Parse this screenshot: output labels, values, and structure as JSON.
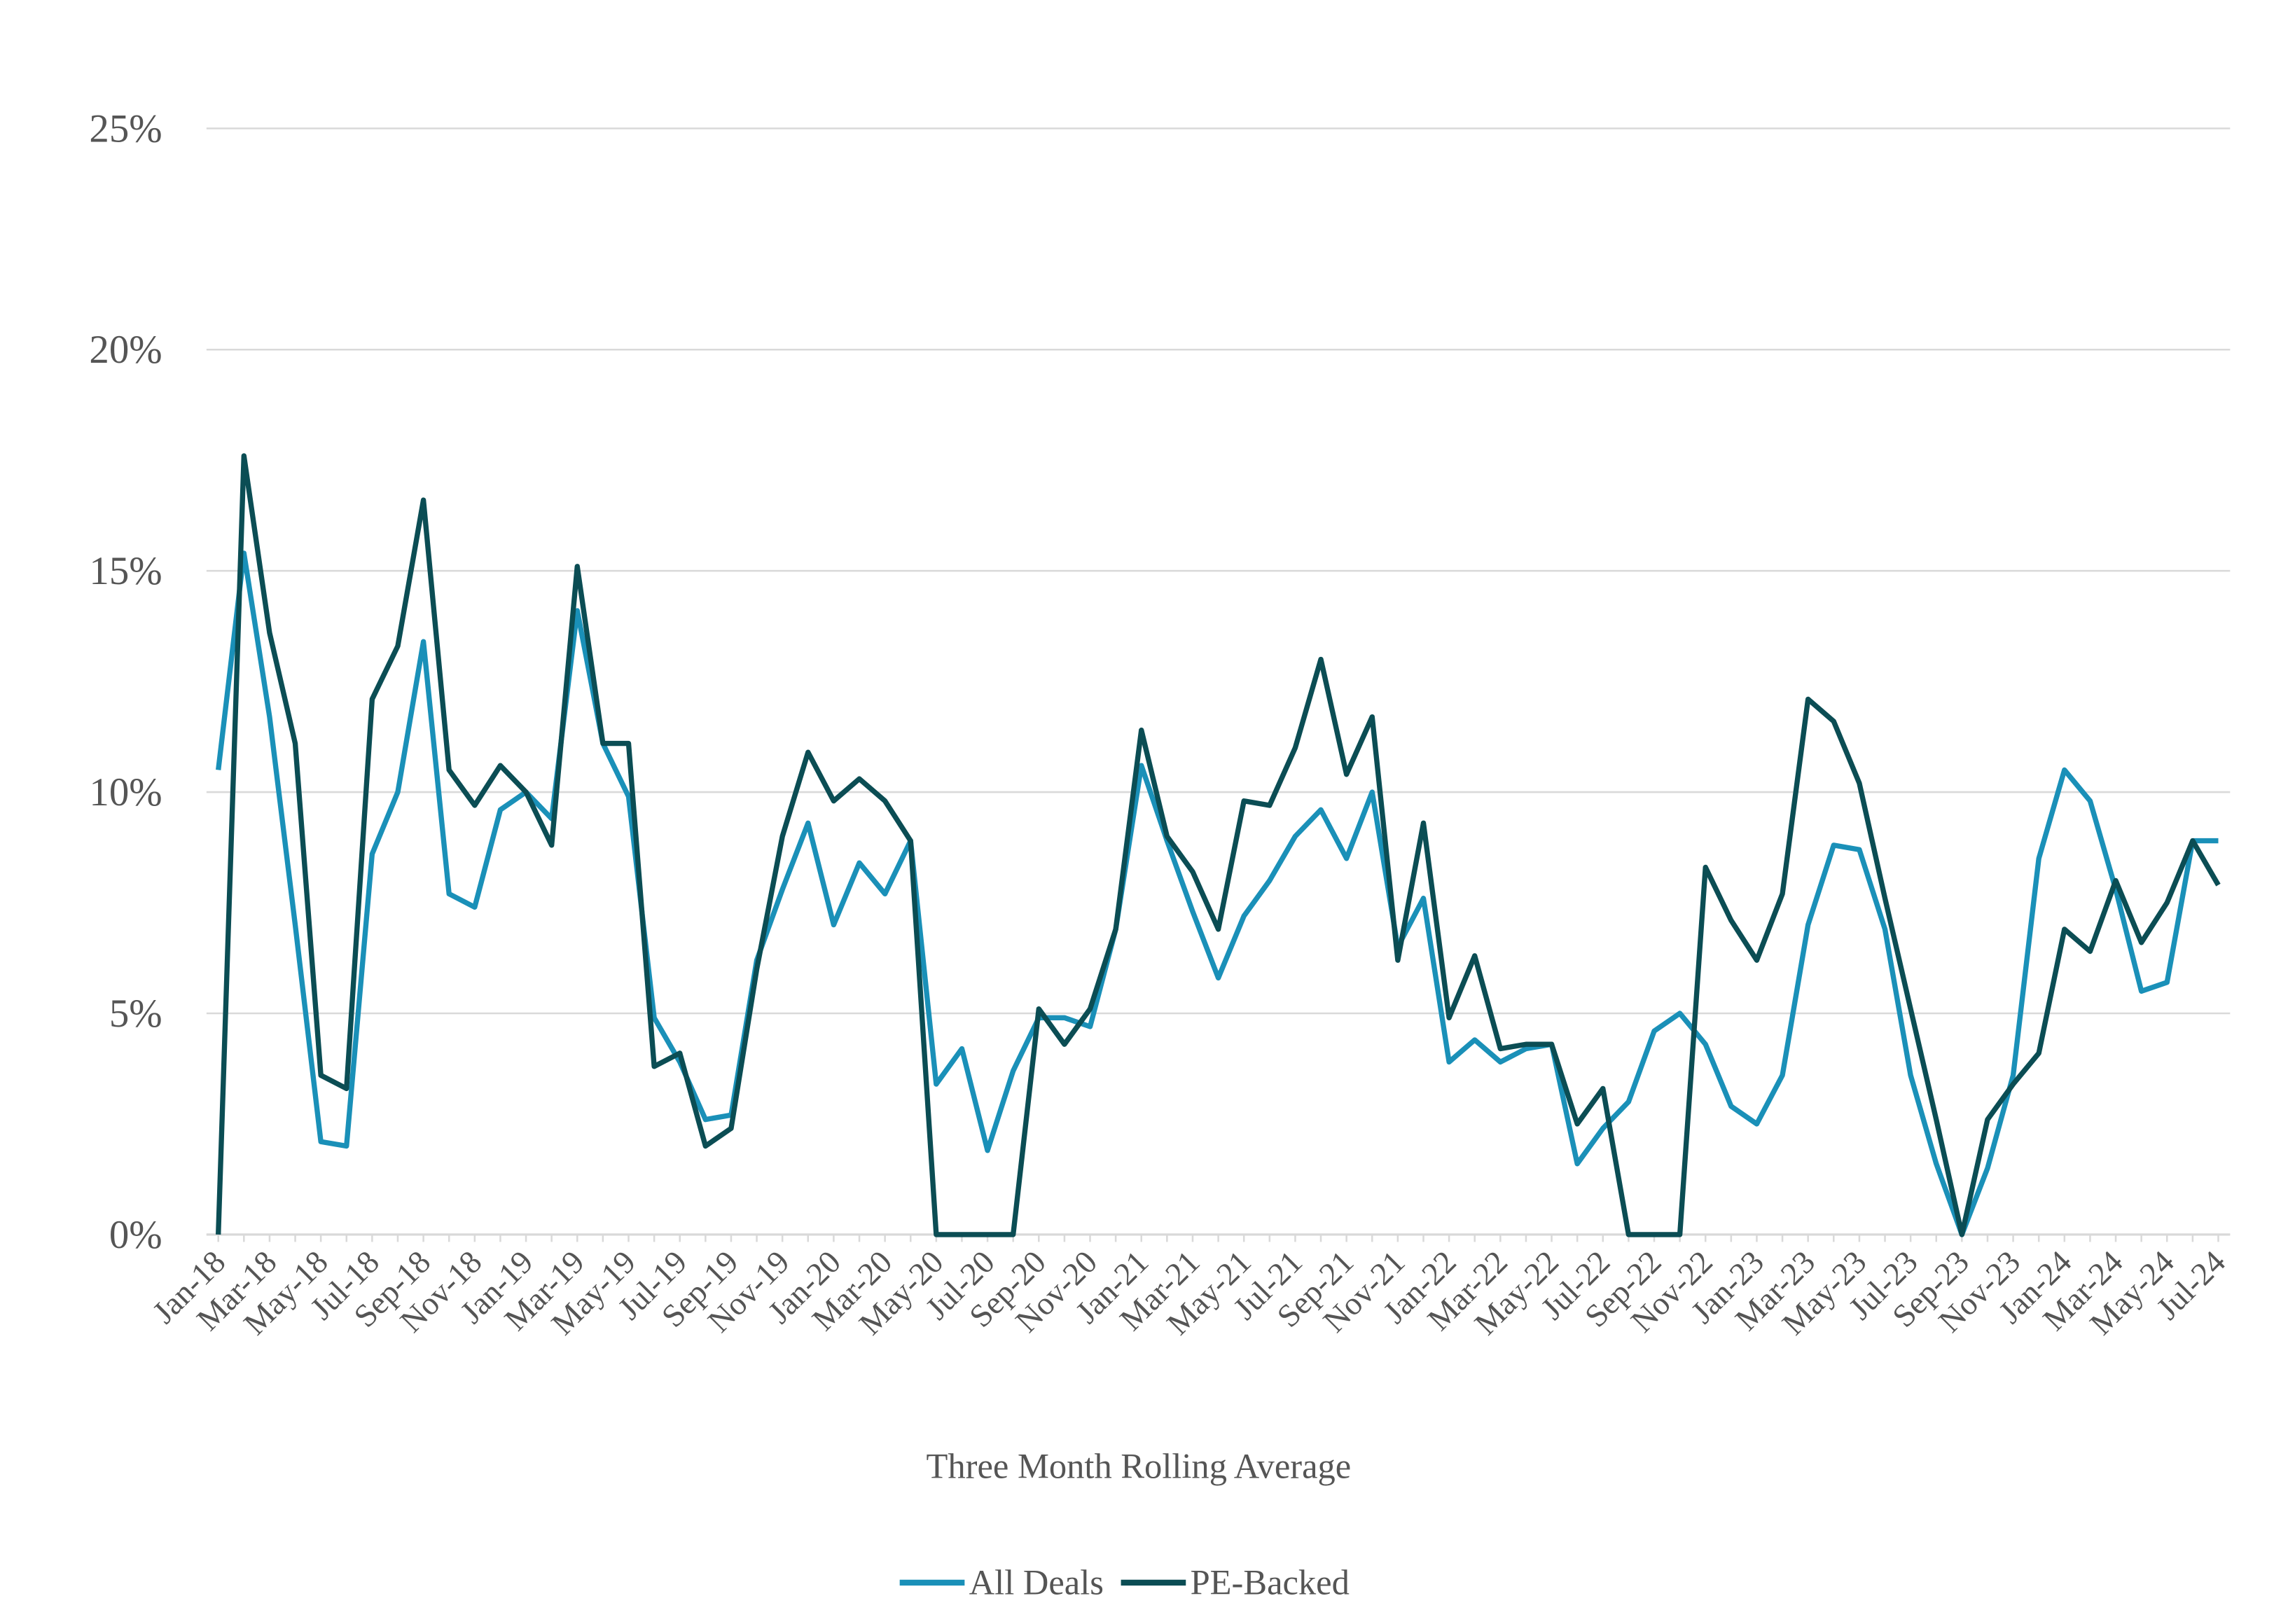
{
  "chart_data": {
    "type": "line",
    "x_label": "Three Month Rolling Average",
    "categories": [
      "Jan-18",
      null,
      "Mar-18",
      null,
      "May-18",
      null,
      "Jul-18",
      null,
      "Sep-18",
      null,
      "Nov-18",
      null,
      "Jan-19",
      null,
      "Mar-19",
      null,
      "May-19",
      null,
      "Jul-19",
      null,
      "Sep-19",
      null,
      "Nov-19",
      null,
      "Jan-20",
      null,
      "Mar-20",
      null,
      "May-20",
      null,
      "Jul-20",
      null,
      "Sep-20",
      null,
      "Nov-20",
      null,
      "Jan-21",
      null,
      "Mar-21",
      null,
      "May-21",
      null,
      "Jul-21",
      null,
      "Sep-21",
      null,
      "Nov-21",
      null,
      "Jan-22",
      null,
      "Mar-22",
      null,
      "May-22",
      null,
      "Jul-22",
      null,
      "Sep-22",
      null,
      "Nov-22",
      null,
      "Jan-23",
      null,
      "Mar-23",
      null,
      "May-23",
      null,
      "Jul-23",
      null,
      "Sep-23",
      null,
      "Nov-23",
      null,
      "Jan-24",
      null,
      "Mar-24",
      null,
      "May-24",
      null,
      "Jul-24"
    ],
    "series": [
      {
        "name": "All Deals",
        "color": "#1a90b8",
        "values": [
          10.5,
          15.4,
          11.7,
          7.0,
          2.1,
          2.0,
          8.6,
          10.0,
          13.4,
          7.7,
          7.4,
          9.6,
          10.0,
          9.4,
          14.1,
          11.1,
          9.9,
          4.9,
          3.9,
          2.6,
          2.7,
          6.2,
          7.8,
          9.3,
          7.0,
          8.4,
          7.7,
          8.9,
          3.4,
          4.2,
          1.9,
          3.7,
          4.9,
          4.9,
          4.7,
          6.9,
          10.6,
          8.9,
          7.3,
          5.8,
          7.2,
          8.0,
          9.0,
          9.6,
          8.5,
          10.0,
          6.5,
          7.6,
          3.9,
          4.4,
          3.9,
          4.2,
          4.3,
          1.6,
          2.4,
          3.0,
          4.6,
          5.0,
          4.3,
          2.9,
          2.5,
          3.6,
          7.0,
          8.8,
          8.7,
          6.9,
          3.6,
          1.6,
          0,
          1.5,
          3.6,
          8.5,
          10.5,
          9.8,
          7.8,
          5.5,
          5.7,
          8.9,
          8.9
        ]
      },
      {
        "name": "PE-Backed",
        "color": "#0b4d54",
        "values": [
          0,
          17.6,
          13.6,
          11.1,
          3.6,
          3.3,
          12.1,
          13.3,
          16.6,
          10.5,
          9.7,
          10.6,
          10.0,
          8.8,
          15.1,
          11.1,
          11.1,
          3.8,
          4.1,
          2.0,
          2.4,
          6.0,
          9.0,
          10.9,
          9.8,
          10.3,
          9.8,
          8.9,
          0,
          0,
          0,
          0,
          5.1,
          4.3,
          5.1,
          6.9,
          11.4,
          9.0,
          8.2,
          6.9,
          9.8,
          9.7,
          11.0,
          13.0,
          10.4,
          11.7,
          6.2,
          9.3,
          4.9,
          6.3,
          4.2,
          4.3,
          4.3,
          2.5,
          3.3,
          0,
          0,
          0,
          8.3,
          7.1,
          6.2,
          7.7,
          12.1,
          11.6,
          10.2,
          7.6,
          5.1,
          2.6,
          0,
          2.6,
          3.4,
          4.1,
          6.9,
          6.4,
          8.0,
          6.6,
          7.5,
          8.9,
          7.9
        ]
      }
    ],
    "ylim": [
      0,
      25
    ],
    "yticks": [
      {
        "value": 0,
        "label": "0%"
      },
      {
        "value": 5,
        "label": "5%"
      },
      {
        "value": 10,
        "label": "10%"
      },
      {
        "value": 15,
        "label": "15%"
      },
      {
        "value": 20,
        "label": "20%"
      },
      {
        "value": 25,
        "label": "25%"
      }
    ],
    "grid": true,
    "legend": "bottom"
  }
}
